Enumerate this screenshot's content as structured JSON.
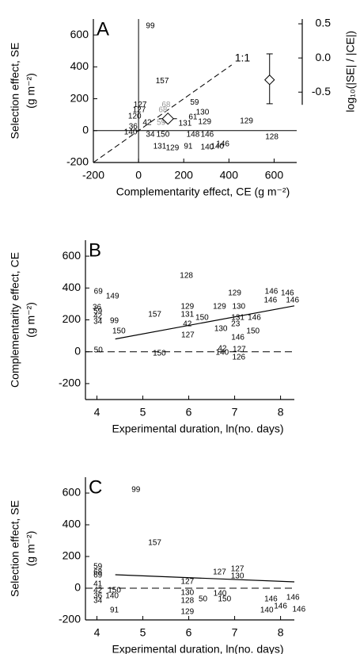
{
  "chart_data": [
    {
      "type": "scatter",
      "panel_label": "A",
      "xlabel": "Complementarity effect, CE (g m⁻²)",
      "ylabel": "Selection effect, SE",
      "ylabel_unit": "(g m⁻²)",
      "y2label": "log₁₀(|SE| / |CE|)",
      "xlim": [
        -200,
        700
      ],
      "ylim": [
        -200,
        700
      ],
      "xticks": [
        -200,
        0,
        200,
        400,
        600
      ],
      "yticks": [
        -200,
        0,
        200,
        400,
        600
      ],
      "y2lim": [
        -1.53,
        0.57
      ],
      "y2ticks": [
        0.5,
        {
          "value": 0,
          "label": "0.0"
        },
        -0.5
      ],
      "one_to_one_label": "1:1",
      "series": [
        {
          "color": "#000000",
          "labels": [
            "99",
            "157",
            "59",
            "130",
            "61",
            "129",
            "129",
            "131",
            "128",
            "127",
            "127",
            "120",
            "42",
            "36",
            "140",
            "150",
            "34",
            "148",
            "146",
            "131",
            "129",
            "91",
            "140",
            "140",
            "146"
          ],
          "x": [
            52,
            105,
            248,
            283,
            241,
            293,
            478,
            206,
            590,
            7,
            3,
            -17,
            38,
            -24,
            -35,
            108,
            52,
            241,
            304,
            94,
            150,
            220,
            304,
            349,
            373
          ],
          "y": [
            655,
            310,
            175,
            115,
            85,
            55,
            60,
            45,
            -40,
            160,
            130,
            90,
            50,
            25,
            -10,
            -25,
            -25,
            -25,
            -25,
            -100,
            -110,
            -100,
            -105,
            -100,
            -85
          ]
        },
        {
          "color": "#999999",
          "labels": [
            "68",
            "68",
            "69",
            "59"
          ],
          "x": [
            122,
            108,
            125,
            100
          ],
          "y": [
            160,
            130,
            60,
            50
          ]
        }
      ],
      "mean": {
        "x": 130,
        "y": 75,
        "xerr": 40,
        "yerr": 35
      },
      "ratio": {
        "axis": "y2",
        "x": 580,
        "value": -0.32,
        "lower": -0.67,
        "upper": 0.06
      }
    },
    {
      "type": "scatter",
      "panel_label": "B",
      "xlabel": "Experimental duration, ln(no. days)",
      "ylabel": "Complementarity effect, CE",
      "ylabel_unit": "(g m⁻²)",
      "xlim": [
        3.75,
        8.3
      ],
      "ylim": [
        -300,
        700
      ],
      "xticks": [
        4,
        5,
        6,
        7,
        8
      ],
      "yticks": [
        -200,
        0,
        200,
        400,
        600
      ],
      "zero_line": true,
      "series": [
        {
          "color": "#000000",
          "labels": [
            "128",
            "69",
            "149",
            "36",
            "59",
            "42",
            "34",
            "157",
            "99",
            "150",
            "50",
            "129",
            "131",
            "150",
            "42",
            "127",
            "129",
            "129",
            "130",
            "131",
            "146",
            "130",
            "150",
            "146",
            "146",
            "146",
            "146",
            "146",
            "23",
            "42",
            "140",
            "127",
            "126",
            "150"
          ],
          "x": [
            5.95,
            4.03,
            4.34,
            4.0,
            4.02,
            4.02,
            4.02,
            5.26,
            4.38,
            4.48,
            4.03,
            5.97,
            5.97,
            6.29,
            5.97,
            5.98,
            7.0,
            6.67,
            7.09,
            7.07,
            7.43,
            6.7,
            7.4,
            7.07,
            8.15,
            7.8,
            7.78,
            8.26,
            7.02,
            6.73,
            6.73,
            7.1,
            7.09,
            5.36
          ],
          "y": [
            476,
            377,
            347,
            278,
            253,
            223,
            188,
            233,
            193,
            129,
            10,
            283,
            233,
            213,
            174,
            104,
            367,
            283,
            283,
            213,
            213,
            144,
            129,
            89,
            367,
            377,
            322,
            322,
            174,
            20,
            -5,
            15,
            -35,
            -10
          ]
        }
      ],
      "fit": {
        "x": [
          4.4,
          8.3
        ],
        "y": [
          80,
          288
        ]
      }
    },
    {
      "type": "scatter",
      "panel_label": "C",
      "xlabel": "Experimental duration, ln(no. days)",
      "ylabel": "Selection effect, SE",
      "ylabel_unit": "(g m⁻²)",
      "xlim": [
        3.75,
        8.3
      ],
      "ylim": [
        -200,
        700
      ],
      "xticks": [
        4,
        5,
        6,
        7,
        8
      ],
      "yticks": [
        -200,
        0,
        200,
        400,
        600
      ],
      "zero_line": true,
      "series": [
        {
          "color": "#000000",
          "labels": [
            "99",
            "157",
            "59",
            "68",
            "69",
            "41",
            "42",
            "36",
            "34",
            "140",
            "150",
            "91",
            "127",
            "130",
            "128",
            "129",
            "50",
            "127",
            "127",
            "130",
            "150",
            "140",
            "146",
            "146",
            "140",
            "146",
            "146"
          ],
          "x": [
            4.85,
            5.26,
            4.02,
            4.02,
            4.02,
            4.02,
            4.02,
            4.02,
            4.02,
            4.33,
            4.38,
            4.38,
            5.97,
            5.97,
            5.97,
            5.97,
            6.31,
            6.67,
            7.06,
            7.06,
            6.78,
            6.68,
            7.79,
            8.27,
            7.7,
            8.0,
            8.4
          ],
          "y": [
            620,
            285,
            135,
            100,
            80,
            25,
            -15,
            -50,
            -80,
            -50,
            -15,
            -140,
            40,
            -30,
            -80,
            -150,
            -70,
            100,
            120,
            75,
            -70,
            -35,
            -70,
            -60,
            -140,
            -115,
            -135
          ]
        }
      ],
      "fit": {
        "x": [
          4.4,
          8.3
        ],
        "y": [
          85,
          40
        ]
      }
    }
  ]
}
